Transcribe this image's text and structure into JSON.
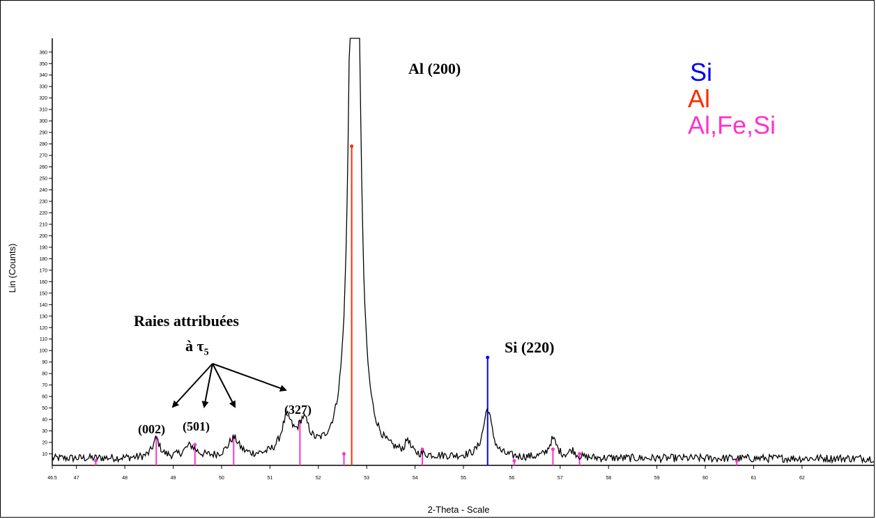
{
  "chart_data": {
    "type": "line",
    "xlabel": "2-Theta - Scale",
    "ylabel": "Lin (Counts)",
    "xlim": [
      46.5,
      63.5
    ],
    "ylim": [
      0,
      372
    ],
    "x_ticks": [
      "46.5",
      "47",
      "48",
      "49",
      "50",
      "51",
      "52",
      "53",
      "54",
      "55",
      "56",
      "57",
      "58",
      "59",
      "60",
      "61",
      "62"
    ],
    "x_tick_values": [
      46.5,
      47,
      48,
      49,
      50,
      51,
      52,
      53,
      54,
      55,
      56,
      57,
      58,
      59,
      60,
      61,
      62
    ],
    "y_ticks": [
      "10",
      "20",
      "30",
      "40",
      "50",
      "60",
      "70",
      "80",
      "90",
      "100",
      "110",
      "120",
      "130",
      "140",
      "150",
      "160",
      "170",
      "180",
      "190",
      "200",
      "210",
      "220",
      "230",
      "240",
      "250",
      "260",
      "270",
      "280",
      "290",
      "300",
      "310",
      "320",
      "330",
      "340",
      "350",
      "360"
    ],
    "y_tick_values": [
      10,
      20,
      30,
      40,
      50,
      60,
      70,
      80,
      90,
      100,
      110,
      120,
      130,
      140,
      150,
      160,
      170,
      180,
      190,
      200,
      210,
      220,
      230,
      240,
      250,
      260,
      270,
      280,
      290,
      300,
      310,
      320,
      330,
      340,
      350,
      360
    ],
    "pattern": {
      "baseline": 6,
      "peaks": [
        {
          "x": 48.65,
          "h": 16,
          "w": 0.09
        },
        {
          "x": 49.35,
          "h": 10,
          "w": 0.15
        },
        {
          "x": 50.25,
          "h": 16,
          "w": 0.14
        },
        {
          "x": 51.35,
          "h": 30,
          "w": 0.14
        },
        {
          "x": 51.7,
          "h": 26,
          "w": 0.14
        },
        {
          "x": 52.75,
          "h": 960,
          "w": 0.085
        },
        {
          "x": 53.85,
          "h": 12,
          "w": 0.05
        },
        {
          "x": 55.5,
          "h": 42,
          "w": 0.11
        },
        {
          "x": 56.85,
          "h": 16,
          "w": 0.1
        },
        {
          "x": 57.25,
          "h": 6,
          "w": 0.08
        }
      ]
    },
    "reference_lines": [
      {
        "phase": "Al,Fe,Si",
        "x": 47.4,
        "y": 4
      },
      {
        "phase": "Al,Fe,Si",
        "x": 48.65,
        "y": 24
      },
      {
        "phase": "Al,Fe,Si",
        "x": 49.45,
        "y": 18
      },
      {
        "phase": "Al,Fe,Si",
        "x": 50.25,
        "y": 24
      },
      {
        "phase": "Al,Fe,Si",
        "x": 51.62,
        "y": 38
      },
      {
        "phase": "Al,Fe,Si",
        "x": 52.53,
        "y": 10
      },
      {
        "phase": "Al",
        "x": 52.69,
        "y": 278
      },
      {
        "phase": "Al,Fe,Si",
        "x": 54.15,
        "y": 14
      },
      {
        "phase": "Si",
        "x": 55.5,
        "y": 94
      },
      {
        "phase": "Al,Fe,Si",
        "x": 56.05,
        "y": 4
      },
      {
        "phase": "Al,Fe,Si",
        "x": 56.85,
        "y": 14
      },
      {
        "phase": "Al,Fe,Si",
        "x": 57.4,
        "y": 10
      },
      {
        "phase": "Al,Fe,Si",
        "x": 60.65,
        "y": 4
      }
    ],
    "legend": [
      {
        "name": "Si",
        "color": "#0000ee"
      },
      {
        "name": "Al",
        "color": "#ff2a00"
      },
      {
        "name": "Al,Fe,Si",
        "color": "#ff33cc"
      }
    ],
    "legend_position": "top-right",
    "annotations": {
      "al200": "Al (200)",
      "si220": "Si (220)",
      "raies_line1": "Raies attribuées",
      "raies_line2": "à τ",
      "raies_sub": "5",
      "p002": "(002)",
      "p501": "(501)",
      "p327": "(327)"
    },
    "grid": false
  }
}
